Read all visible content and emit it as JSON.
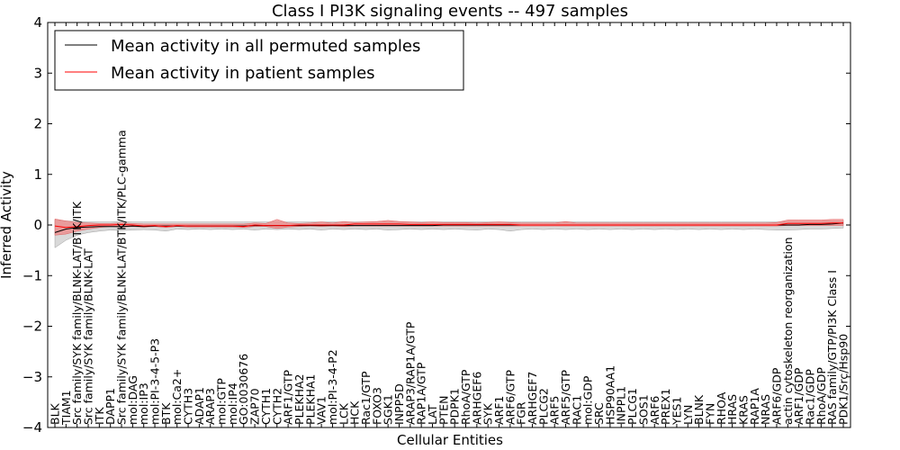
{
  "chart_data": {
    "type": "line",
    "title": "Class I PI3K signaling events -- 497 samples",
    "xlabel": "Cellular Entities",
    "ylabel": "Inferred Activity",
    "ylim": [
      -4,
      4
    ],
    "yticks": [
      -4,
      -3,
      -2,
      -1,
      0,
      1,
      2,
      3,
      4
    ],
    "grid": false,
    "legend_position": "top-left",
    "colors": {
      "permuted": "#000000",
      "patient": "#ff0000",
      "permuted_band": "#c0c0c0",
      "patient_band": "#f08080"
    },
    "categories": [
      "BLK",
      "TIAM1",
      "Src family/SYK family/BLNK-LAT/BTK/ITK",
      "Src family/SYK family/BLNK-LAT",
      "ITK",
      "DAPP1",
      "Src family/SYK family/BLNK-LAT/BTK/ITK/PLC-gamma",
      "mol:DAG",
      "mol:IP3",
      "mol:PI-3-4-5-P3",
      "BTK",
      "mol:Ca2+",
      "CYTH3",
      "ADAP1",
      "ARAP3",
      "mol:GTP",
      "mol:IP4",
      "GO:0030676",
      "ZAP70",
      "CYTH1",
      "CYTH2",
      "ARF1/GTP",
      "PLEKHA2",
      "PLEKHA1",
      "VAV1",
      "mol:PI-3-4-P2",
      "LCK",
      "HCK",
      "Rac1/GTP",
      "FOXO3",
      "SGK1",
      "INPP5D",
      "ARAP3/RAP1A/GTP",
      "RAP1A/GTP",
      "LAT",
      "PTEN",
      "PDPK1",
      "RhoA/GTP",
      "ARHGEF6",
      "SYK",
      "ARF1",
      "ARF6/GTP",
      "FGR",
      "ARHGEF7",
      "PLCG2",
      "ARF5",
      "ARF5/GTP",
      "RAC1",
      "mol:GDP",
      "SRC",
      "HSP90AA1",
      "INPPL1",
      "PLCG1",
      "SOS1",
      "ARF6",
      "PREX1",
      "YES1",
      "LYN",
      "BLNK",
      "FYN",
      "RHOA",
      "HRAS",
      "KRAS",
      "RAP1A",
      "NRAS",
      "ARF6/GDP",
      "actin cytoskeleton reorganization",
      "ARF1/GDP",
      "Rac1/GDP",
      "RhoA/GDP",
      "RAS family/GTP/PI3K Class I",
      "PDK1/Src/Hsp90"
    ],
    "series": [
      {
        "name": "Mean activity in all permuted samples",
        "values": [
          -0.15,
          -0.08,
          -0.05,
          -0.04,
          -0.03,
          -0.03,
          -0.03,
          -0.02,
          -0.03,
          -0.02,
          -0.02,
          -0.02,
          -0.02,
          -0.02,
          -0.02,
          -0.02,
          -0.02,
          -0.02,
          -0.01,
          -0.01,
          -0.01,
          -0.01,
          -0.01,
          -0.01,
          -0.01,
          -0.01,
          -0.01,
          -0.01,
          -0.01,
          -0.01,
          -0.01,
          -0.01,
          -0.01,
          -0.01,
          -0.01,
          0.0,
          0.0,
          0.0,
          0.0,
          0.0,
          0.0,
          0.0,
          0.0,
          0.0,
          0.0,
          0.0,
          0.0,
          0.0,
          0.0,
          0.0,
          0.0,
          0.0,
          0.0,
          0.0,
          0.0,
          0.0,
          0.0,
          0.0,
          0.0,
          0.0,
          0.0,
          0.0,
          0.0,
          0.0,
          0.0,
          0.0,
          0.0,
          0.0,
          0.01,
          0.01,
          0.02,
          0.04
        ],
        "band_lower": [
          -0.45,
          -0.3,
          -0.2,
          -0.15,
          -0.12,
          -0.1,
          -0.11,
          -0.1,
          -0.09,
          -0.1,
          -0.12,
          -0.08,
          -0.09,
          -0.08,
          -0.09,
          -0.08,
          -0.09,
          -0.08,
          -0.1,
          -0.08,
          -0.09,
          -0.08,
          -0.09,
          -0.08,
          -0.1,
          -0.08,
          -0.09,
          -0.08,
          -0.09,
          -0.08,
          -0.1,
          -0.09,
          -0.08,
          -0.09,
          -0.08,
          -0.09,
          -0.08,
          -0.09,
          -0.1,
          -0.08,
          -0.09,
          -0.12,
          -0.09,
          -0.08,
          -0.09,
          -0.08,
          -0.09,
          -0.08,
          -0.09,
          -0.08,
          -0.09,
          -0.08,
          -0.09,
          -0.08,
          -0.09,
          -0.08,
          -0.09,
          -0.08,
          -0.09,
          -0.08,
          -0.09,
          -0.08,
          -0.09,
          -0.08,
          -0.09,
          -0.1,
          -0.1,
          -0.09,
          -0.08,
          -0.08,
          -0.07,
          -0.06
        ],
        "band_upper": [
          0.1,
          0.08,
          0.07,
          0.06,
          0.06,
          0.06,
          0.07,
          0.06,
          0.06,
          0.06,
          0.06,
          0.06,
          0.06,
          0.06,
          0.06,
          0.06,
          0.06,
          0.06,
          0.06,
          0.06,
          0.06,
          0.06,
          0.06,
          0.06,
          0.06,
          0.06,
          0.06,
          0.06,
          0.06,
          0.06,
          0.06,
          0.06,
          0.06,
          0.06,
          0.06,
          0.06,
          0.06,
          0.06,
          0.06,
          0.06,
          0.06,
          0.06,
          0.06,
          0.06,
          0.06,
          0.06,
          0.06,
          0.06,
          0.06,
          0.06,
          0.06,
          0.06,
          0.06,
          0.06,
          0.06,
          0.06,
          0.06,
          0.06,
          0.06,
          0.06,
          0.06,
          0.06,
          0.06,
          0.06,
          0.06,
          0.06,
          0.07,
          0.07,
          0.07,
          0.07,
          0.08,
          0.08
        ]
      },
      {
        "name": "Mean activity in patient samples",
        "values": [
          -0.02,
          -0.05,
          -0.03,
          -0.01,
          0.0,
          0.0,
          0.01,
          0.0,
          -0.02,
          -0.01,
          -0.03,
          -0.01,
          -0.02,
          -0.02,
          -0.02,
          -0.02,
          -0.02,
          -0.03,
          0.0,
          -0.01,
          -0.01,
          -0.01,
          0.0,
          0.0,
          0.0,
          0.0,
          0.0,
          0.02,
          0.02,
          0.02,
          0.02,
          0.02,
          0.01,
          0.01,
          0.01,
          0.01,
          0.01,
          0.01,
          0.01,
          0.01,
          0.01,
          0.01,
          0.0,
          0.0,
          0.0,
          0.0,
          0.0,
          0.0,
          0.0,
          0.0,
          0.0,
          0.0,
          0.0,
          0.0,
          0.0,
          0.0,
          0.0,
          0.0,
          0.0,
          0.0,
          0.0,
          0.0,
          0.0,
          0.0,
          0.0,
          0.0,
          0.03,
          0.03,
          0.03,
          0.03,
          0.04,
          0.04
        ],
        "band_lower": [
          -0.2,
          -0.18,
          -0.12,
          -0.08,
          -0.05,
          -0.03,
          -0.04,
          -0.03,
          -0.04,
          -0.03,
          -0.05,
          -0.03,
          -0.04,
          -0.04,
          -0.04,
          -0.04,
          -0.04,
          -0.05,
          -0.03,
          -0.03,
          -0.07,
          -0.04,
          -0.03,
          -0.02,
          -0.03,
          -0.02,
          -0.03,
          -0.02,
          -0.02,
          -0.02,
          -0.02,
          -0.02,
          -0.02,
          -0.02,
          -0.02,
          -0.02,
          -0.02,
          -0.02,
          -0.02,
          -0.02,
          -0.02,
          -0.02,
          -0.02,
          -0.02,
          -0.02,
          -0.02,
          -0.02,
          -0.02,
          -0.02,
          -0.02,
          -0.02,
          -0.02,
          -0.02,
          -0.02,
          -0.02,
          -0.02,
          -0.02,
          -0.02,
          -0.02,
          -0.02,
          -0.02,
          -0.02,
          -0.02,
          -0.02,
          -0.02,
          -0.02,
          -0.01,
          -0.01,
          -0.01,
          -0.01,
          -0.01,
          -0.01
        ],
        "band_upper": [
          0.12,
          0.08,
          0.05,
          0.04,
          0.03,
          0.03,
          0.04,
          0.03,
          0.02,
          0.02,
          0.02,
          0.02,
          0.02,
          0.02,
          0.02,
          0.02,
          0.02,
          0.02,
          0.04,
          0.03,
          0.11,
          0.04,
          0.03,
          0.04,
          0.06,
          0.04,
          0.07,
          0.05,
          0.06,
          0.07,
          0.09,
          0.07,
          0.06,
          0.05,
          0.06,
          0.05,
          0.05,
          0.05,
          0.04,
          0.05,
          0.06,
          0.05,
          0.04,
          0.04,
          0.04,
          0.04,
          0.07,
          0.04,
          0.04,
          0.04,
          0.04,
          0.04,
          0.04,
          0.04,
          0.04,
          0.04,
          0.04,
          0.04,
          0.04,
          0.04,
          0.04,
          0.04,
          0.04,
          0.04,
          0.04,
          0.05,
          0.1,
          0.1,
          0.1,
          0.1,
          0.11,
          0.11
        ]
      }
    ]
  }
}
